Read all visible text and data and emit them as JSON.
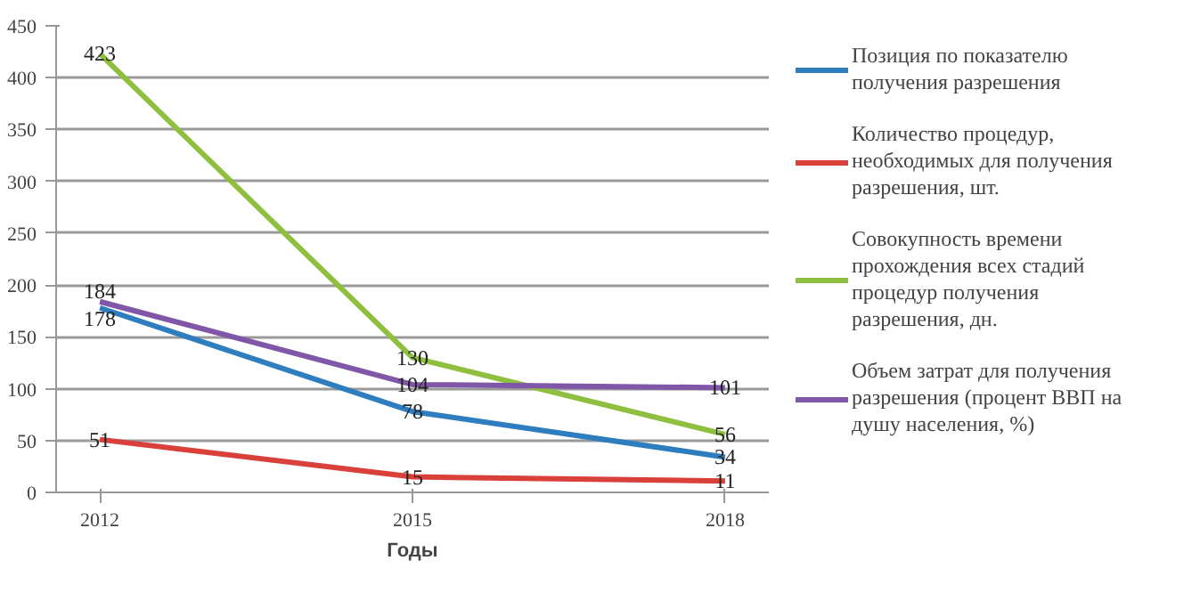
{
  "chart_data": {
    "type": "line",
    "xlabel": "Годы",
    "categories": [
      "2012",
      "2015",
      "2018"
    ],
    "series": [
      {
        "name": "Позиция по показателю получения разрешения",
        "color": "#2e7dbf",
        "values": [
          178,
          78,
          34
        ]
      },
      {
        "name": "Количество процедур, необходимых для получения разрешения, шт.",
        "color": "#d9403a",
        "values": [
          51,
          15,
          11
        ]
      },
      {
        "name": "Совокупность времени прохождения всех стадий процедур получения разрешения, дн.",
        "color": "#8fbf3f",
        "values": [
          423,
          130,
          56
        ]
      },
      {
        "name": "Объем затрат для получения разрешения (процент ВВП на душу населения, %)",
        "color": "#7f56a8",
        "values": [
          184,
          104,
          101
        ]
      }
    ],
    "ylim": [
      0,
      450
    ],
    "yticks": [
      0,
      50,
      100,
      150,
      200,
      250,
      300,
      350,
      400,
      450
    ],
    "grid": "y",
    "legend": "right",
    "data_labels": true,
    "line_style": "solid"
  }
}
